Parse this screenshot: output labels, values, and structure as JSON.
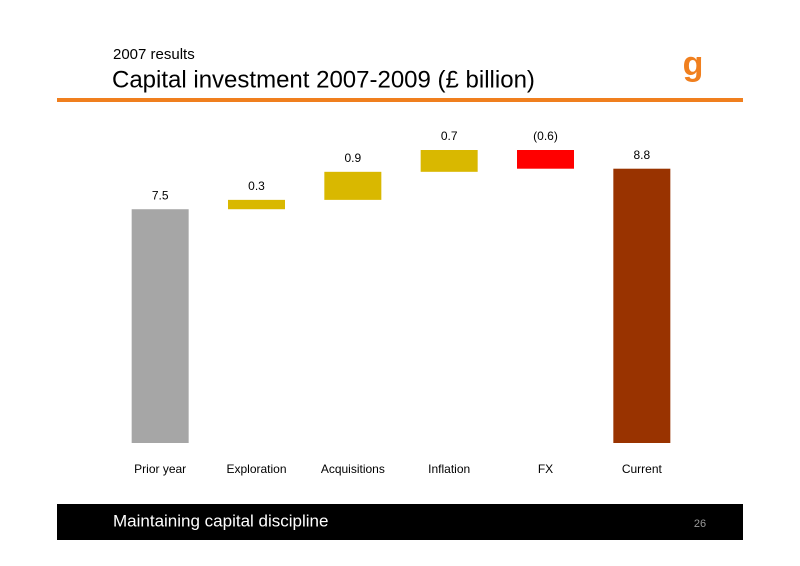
{
  "header": {
    "subtitle": "2007 results",
    "title": "Capital investment 2007-2009 (£ billion)",
    "logo": "g"
  },
  "chart_data": {
    "type": "waterfall",
    "categories": [
      "Prior year",
      "Exploration",
      "Acquisitions",
      "Inflation",
      "FX",
      "Current"
    ],
    "values": [
      7.5,
      0.3,
      0.9,
      0.7,
      -0.6,
      8.8
    ],
    "value_labels": [
      "7.5",
      "0.3",
      "0.9",
      "0.7",
      "(0.6)",
      "8.8"
    ],
    "colors": [
      "#a6a6a6",
      "#d9b800",
      "#d9b800",
      "#d9b800",
      "#ff0000",
      "#993300"
    ]
  },
  "footer": {
    "text": "Maintaining capital discipline",
    "page": "26"
  }
}
